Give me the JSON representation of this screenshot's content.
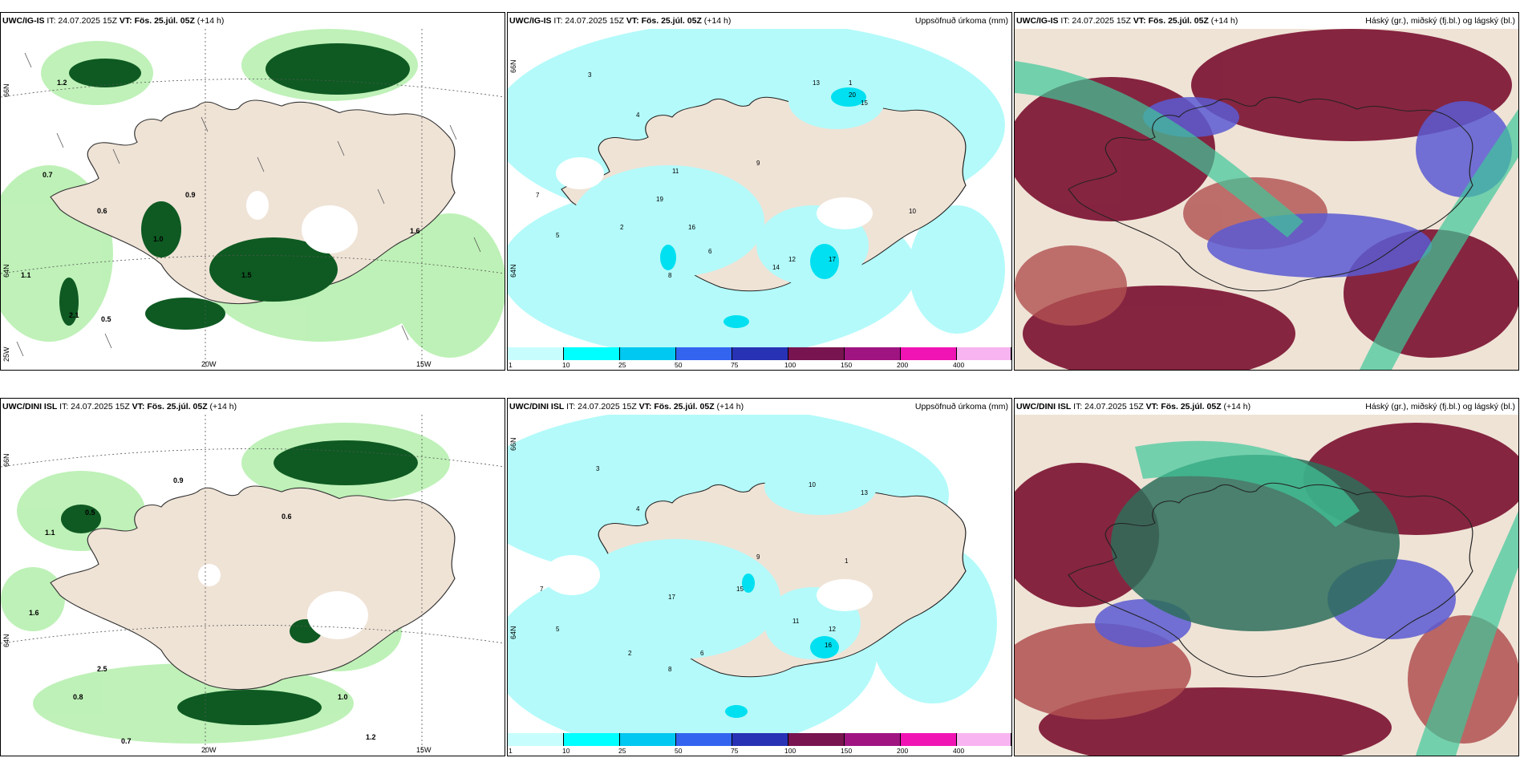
{
  "panels": [
    {
      "model": "UWC/IG-IS",
      "it": "IT: 24.07.2025 15Z",
      "vt": "VT: Fös. 25.júl. 05Z",
      "lead": "(+14 h)",
      "title_right": ""
    },
    {
      "model": "UWC/IG-IS",
      "it": "IT: 24.07.2025 15Z",
      "vt": "VT: Fös. 25.júl. 05Z",
      "lead": "(+14 h)",
      "title_right": "Uppsöfnuð úrkoma (mm)"
    },
    {
      "model": "UWC/IG-IS",
      "it": "IT: 24.07.2025 15Z",
      "vt": "VT: Fös. 25.júl. 05Z",
      "lead": "(+14 h)",
      "title_right": "Háský (gr.), miðský (fj.bl.) og lágský (bl.)"
    },
    {
      "model": "UWC/DINI ISL",
      "it": "IT: 24.07.2025 15Z",
      "vt": "VT: Fös. 25.júl. 05Z",
      "lead": "(+14 h)",
      "title_right": ""
    },
    {
      "model": "UWC/DINI ISL",
      "it": "IT: 24.07.2025 15Z",
      "vt": "VT: Fös. 25.júl. 05Z",
      "lead": "(+14 h)",
      "title_right": "Uppsöfnuð úrkoma (mm)"
    },
    {
      "model": "UWC/DINI ISL",
      "it": "IT: 24.07.2025 15Z",
      "vt": "VT: Fös. 25.júl. 05Z",
      "lead": "(+14 h)",
      "title_right": "Háský (gr.), miðský (fj.bl.) og lágský (bl.)"
    }
  ],
  "grid_labels": {
    "lat66": "66N",
    "lat64": "64N",
    "lon20": "20W",
    "lon15": "15W",
    "lon25": "25W"
  },
  "colorbar": {
    "ticks": [
      "1",
      "10",
      "25",
      "50",
      "75",
      "100",
      "150",
      "200",
      "400"
    ],
    "colors": [
      "#c8fdfd",
      "#00ffff",
      "#00c8f0",
      "#3264f0",
      "#2832b4",
      "#781450",
      "#a01482",
      "#f014b4",
      "#f8b4f0"
    ]
  },
  "precip_labels_top": [
    "3",
    "4",
    "5",
    "6",
    "7",
    "8",
    "9",
    "10",
    "11",
    "12",
    "13",
    "14",
    "15",
    "16",
    "17",
    "19",
    "20",
    "1",
    "2"
  ],
  "precip_labels_bottom": [
    "3",
    "4",
    "5",
    "6",
    "7",
    "8",
    "9",
    "10",
    "11",
    "12",
    "13",
    "15",
    "16",
    "17",
    "1",
    "2"
  ],
  "pcp_labels_top": [
    "1.2",
    "0.6",
    "0.7",
    "1.1",
    "0.5",
    "1.0",
    "1.5",
    "2.1",
    "0.9",
    "1.6"
  ],
  "pcp_labels_bottom": [
    "0.8",
    "0.7",
    "1.1",
    "0.5",
    "1.6",
    "0.9",
    "1.0",
    "1.2",
    "0.6",
    "2.5"
  ],
  "colors": {
    "land": "#efe3d6",
    "pcp_light": "#b8f0b0",
    "pcp_dark": "#0e5a22",
    "precip_light": "#b4fafa",
    "cloud_red": "#7a1030",
    "cloud_blue": "#5a5ad2",
    "cloud_green": "#3ec89a"
  }
}
